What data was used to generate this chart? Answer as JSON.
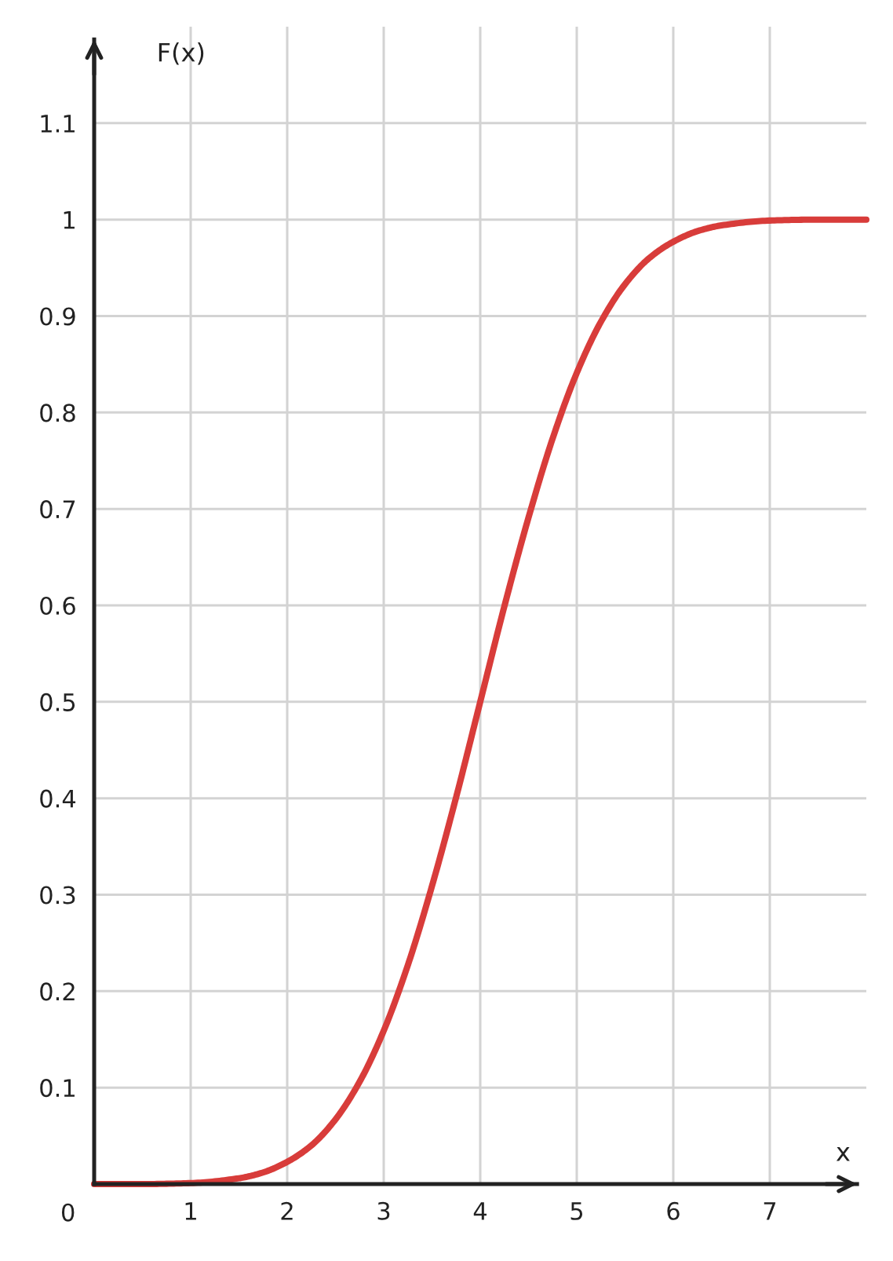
{
  "chart_data": {
    "type": "line",
    "xlabel": "x",
    "ylabel": "F(x)",
    "x": [
      0,
      0.5,
      1,
      1.5,
      1.75,
      2,
      2.25,
      2.5,
      2.75,
      3,
      3.25,
      3.5,
      3.75,
      4,
      4.25,
      4.5,
      4.75,
      5,
      5.25,
      5.5,
      5.75,
      6,
      6.25,
      6.5,
      7,
      7.5,
      8
    ],
    "series": [
      {
        "color": "#d83c3a",
        "values": [
          0,
          0,
          0.001,
          0.006,
          0.012,
          0.023,
          0.04,
          0.067,
          0.106,
          0.159,
          0.227,
          0.309,
          0.401,
          0.5,
          0.599,
          0.691,
          0.773,
          0.841,
          0.894,
          0.933,
          0.96,
          0.977,
          0.988,
          0.994,
          0.999,
          1,
          1
        ]
      }
    ],
    "xlim": [
      0,
      8
    ],
    "ylim": [
      0,
      1.2
    ],
    "xticks": [
      1,
      2,
      3,
      4,
      5,
      6,
      7
    ],
    "yticks": [
      0.1,
      0.2,
      0.3,
      0.4,
      0.5,
      0.6,
      0.7,
      0.8,
      0.9,
      1,
      1.1
    ],
    "annotations": [
      {
        "text": "0",
        "x": 0,
        "y": 0
      }
    ],
    "grid": true
  }
}
